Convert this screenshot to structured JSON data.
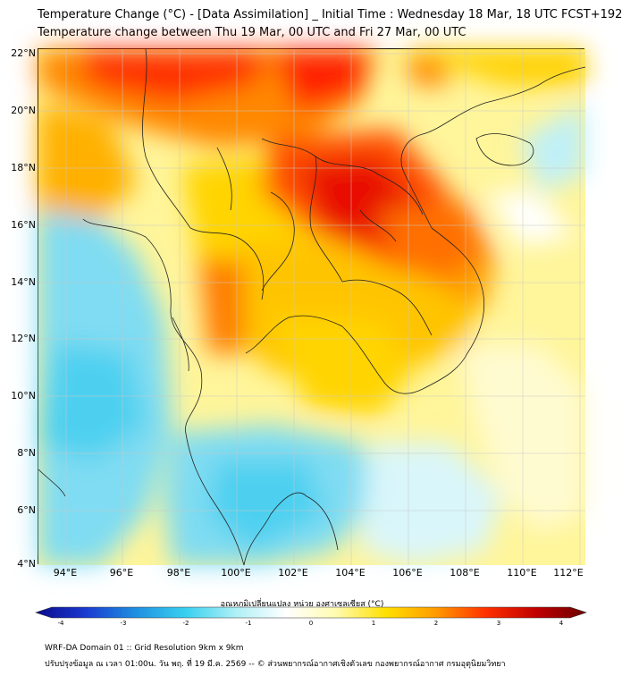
{
  "title_line1": "Temperature Change (°C) - [Data Assimilation] _ Initial Time : Wednesday 18 Mar, 18 UTC FCST+192",
  "title_line2": "Temperature change between Thu 19 Mar, 00 UTC and Fri 27 Mar, 00 UTC",
  "lat_labels": [
    "22°N",
    "20°N",
    "18°N",
    "16°N",
    "14°N",
    "12°N",
    "10°N",
    "8°N",
    "6°N",
    "4°N"
  ],
  "lon_labels": [
    "94°E",
    "96°E",
    "98°E",
    "100°E",
    "102°E",
    "104°E",
    "106°E",
    "108°E",
    "110°E",
    "112°E"
  ],
  "colorbar": {
    "title": "อุณหภูมิเปลี่ยนแปลง หน่วย องศาเซลเซียส (°C)",
    "ticks": [
      "-4",
      "-3",
      "-2",
      "-1",
      "0",
      "1",
      "2",
      "3",
      "4"
    ],
    "colors": [
      "#0a0a8c",
      "#1a3ad0",
      "#1e90e0",
      "#39d0f0",
      "#aef0f6",
      "#ffffff",
      "#fffbb0",
      "#ffe000",
      "#ff9a00",
      "#ff3000",
      "#c00000",
      "#6a0000"
    ]
  },
  "footer_line1": "WRF-DA Domain 01 :: Grid Resolution 9km x 9km",
  "footer_line2": "ปรับปรุงข้อมูล ณ เวลา 01:00น. วัน พฤ. ที่ 19 มี.ค. 2569 -- © ส่วนพยากรณ์อากาศเชิงตัวเลข กองพยากรณ์อากาศ กรมอุตุนิยมวิทยา",
  "legend_colors": {
    "warm_strong": "#ff2200",
    "warm": "#ff8c00",
    "mild": "#ffd400",
    "light": "#fff59a",
    "neutral": "#ffffff",
    "cool": "#c4f2f8",
    "cold": "#6fd9f2"
  }
}
